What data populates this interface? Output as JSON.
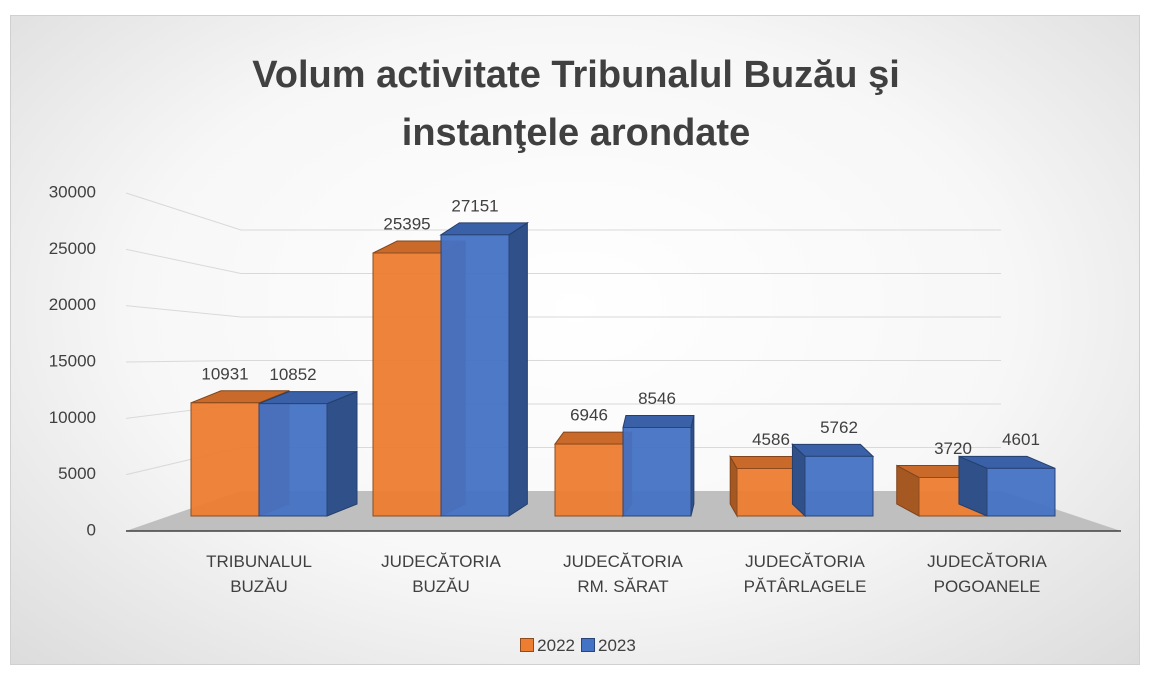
{
  "chart_data": {
    "type": "bar3d",
    "title": "Volum activitate Tribunalul Buzău şi instanţele arondate",
    "categories": [
      "TRIBUNALUL BUZĂU",
      "JUDECĂTORIA BUZĂU",
      "JUDECĂTORIA RM. SĂRAT",
      "JUDECĂTORIA PĂTÂRLAGELE",
      "JUDECĂTORIA POGOANELE"
    ],
    "series": [
      {
        "name": "2022",
        "color": "#ed7d31",
        "values": [
          10931,
          25395,
          6946,
          4586,
          3720
        ]
      },
      {
        "name": "2023",
        "color": "#4472c4",
        "values": [
          10852,
          27151,
          8546,
          5762,
          4601
        ]
      }
    ],
    "ylim": [
      0,
      30000
    ],
    "yticks": [
      0,
      5000,
      10000,
      15000,
      20000,
      25000,
      30000
    ],
    "grid": true,
    "legend": "bottom"
  }
}
